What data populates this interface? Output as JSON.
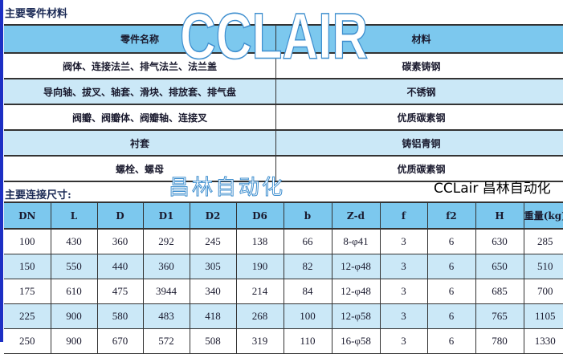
{
  "parts_section": {
    "title": "主要零件材料",
    "headers": [
      "零件名称",
      "材料"
    ],
    "rows": [
      [
        "阀体、连接法兰、排气法兰、法兰盖",
        "碳素铸钢"
      ],
      [
        "导向轴、拔叉、轴套、滑块、排放套、排气盘",
        "不锈钢"
      ],
      [
        "阀瓣、阀瓣体、阀瓣轴、连接叉",
        "优质碳素钢"
      ],
      [
        "衬套",
        "铸铝青铜"
      ],
      [
        "螺栓、螺母",
        "优质碳素钢"
      ]
    ]
  },
  "dimensions_section": {
    "title": "主要连接尺寸:",
    "headers": [
      "DN",
      "L",
      "D",
      "D1",
      "D2",
      "D6",
      "b",
      "Z-d",
      "f",
      "f2",
      "H",
      "重量(kg)"
    ],
    "rows": [
      [
        "100",
        "430",
        "360",
        "292",
        "245",
        "138",
        "66",
        "8-φ41",
        "3",
        "6",
        "630",
        "285"
      ],
      [
        "150",
        "550",
        "440",
        "360",
        "305",
        "190",
        "82",
        "12-φ48",
        "3",
        "6",
        "650",
        "510"
      ],
      [
        "175",
        "610",
        "475",
        "3944",
        "340",
        "214",
        "84",
        "12-φ48",
        "3",
        "6",
        "685",
        "700"
      ],
      [
        "225",
        "900",
        "580",
        "483",
        "418",
        "268",
        "100",
        "12-φ58",
        "3",
        "6",
        "765",
        "1105"
      ],
      [
        "250",
        "900",
        "670",
        "572",
        "508",
        "319",
        "110",
        "16-φ58",
        "3",
        "6",
        "780",
        "1330"
      ]
    ]
  },
  "watermarks": {
    "top": "CCLAIR",
    "middle": "昌林自动化",
    "corner": "CCLair 昌林自动化"
  },
  "colors": {
    "header_bg": "#7cc8ee",
    "alt_row_bg": "#cbe8f7",
    "left_strip": "#1d2fc4"
  }
}
